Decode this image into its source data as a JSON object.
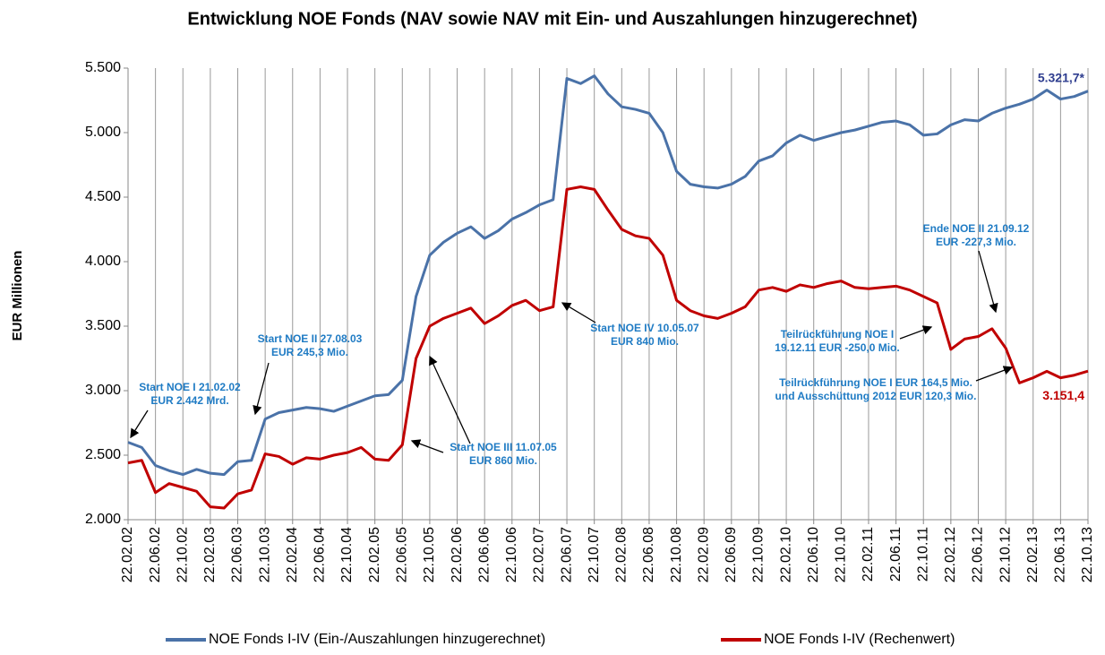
{
  "chart_data": {
    "type": "line",
    "title": "Entwicklung NOE Fonds (NAV sowie NAV mit Ein- und Auszahlungen hinzugerechnet)",
    "y_label": "EUR Millionen",
    "categories": [
      "22.02.02",
      null,
      "22.06.02",
      null,
      "22.10.02",
      null,
      "22.02.03",
      null,
      "22.06.03",
      null,
      "22.10.03",
      null,
      "22.02.04",
      null,
      "22.06.04",
      null,
      "22.10.04",
      null,
      "22.02.05",
      null,
      "22.06.05",
      null,
      "22.10.05",
      null,
      "22.02.06",
      null,
      "22.06.06",
      null,
      "22.10.06",
      null,
      "22.02.07",
      null,
      "22.06.07",
      null,
      "22.10.07",
      null,
      "22.02.08",
      null,
      "22.06.08",
      null,
      "22.10.08",
      null,
      "22.02.09",
      null,
      "22.06.09",
      null,
      "22.10.09",
      null,
      "22.02.10",
      null,
      "22.06.10",
      null,
      "22.10.10",
      null,
      "22.02.11",
      null,
      "22.06.11",
      null,
      "22.10.11",
      null,
      "22.02.12",
      null,
      "22.06.12",
      null,
      "22.10.12",
      null,
      "22.02.13",
      null,
      "22.06.13",
      null,
      "22.10.13"
    ],
    "series": [
      {
        "name": "NOE Fonds I-IV (Ein-/Auszahlungen hinzugerechnet)",
        "color": "#4a72a8",
        "label_color": "#2e3d8f",
        "values": [
          2600,
          2560,
          2420,
          2380,
          2350,
          2390,
          2360,
          2350,
          2450,
          2460,
          2780,
          2830,
          2850,
          2870,
          2860,
          2840,
          2880,
          2920,
          2960,
          2970,
          3080,
          3730,
          4050,
          4150,
          4220,
          4270,
          4180,
          4240,
          4330,
          4380,
          4440,
          4480,
          5420,
          5380,
          5440,
          5300,
          5200,
          5180,
          5150,
          5000,
          4700,
          4600,
          4580,
          4570,
          4600,
          4660,
          4780,
          4820,
          4920,
          4980,
          4940,
          4970,
          5000,
          5020,
          5050,
          5080,
          5090,
          5060,
          4980,
          4990,
          5060,
          5100,
          5090,
          5150,
          5190,
          5220,
          5260,
          5330,
          5260,
          5280,
          5321.7
        ],
        "value_labels": [
          null,
          null,
          null,
          null,
          null,
          null,
          null,
          null,
          null,
          null,
          null,
          null,
          null,
          null,
          null,
          null,
          null,
          null,
          null,
          null,
          null,
          null,
          null,
          null,
          null,
          null,
          null,
          null,
          null,
          null,
          null,
          null,
          null,
          null,
          null,
          null,
          null,
          null,
          null,
          null,
          null,
          null,
          null,
          null,
          null,
          null,
          null,
          null,
          null,
          null,
          null,
          null,
          null,
          null,
          null,
          null,
          null,
          null,
          null,
          null,
          null,
          null,
          null,
          null,
          null,
          null,
          null,
          null,
          null,
          null,
          "5.321,7*"
        ]
      },
      {
        "name": "NOE Fonds I-IV (Rechenwert)",
        "color": "#c00000",
        "label_color": "#c00000",
        "values": [
          2440,
          2460,
          2210,
          2280,
          2250,
          2220,
          2100,
          2090,
          2200,
          2230,
          2510,
          2490,
          2430,
          2480,
          2470,
          2500,
          2520,
          2560,
          2470,
          2460,
          2580,
          3250,
          3500,
          3560,
          3600,
          3640,
          3520,
          3580,
          3660,
          3700,
          3620,
          3650,
          4560,
          4580,
          4560,
          4400,
          4250,
          4200,
          4180,
          4050,
          3700,
          3620,
          3580,
          3560,
          3600,
          3650,
          3780,
          3800,
          3770,
          3820,
          3800,
          3830,
          3850,
          3800,
          3790,
          3800,
          3810,
          3780,
          3730,
          3680,
          3320,
          3400,
          3420,
          3480,
          3330,
          3060,
          3100,
          3150,
          3100,
          3120,
          3151.4
        ],
        "value_labels": [
          null,
          null,
          null,
          null,
          null,
          null,
          null,
          null,
          null,
          null,
          null,
          null,
          null,
          null,
          null,
          null,
          null,
          null,
          null,
          null,
          null,
          null,
          null,
          null,
          null,
          null,
          null,
          null,
          null,
          null,
          null,
          null,
          null,
          null,
          null,
          null,
          null,
          null,
          null,
          null,
          null,
          null,
          null,
          null,
          null,
          null,
          null,
          null,
          null,
          null,
          null,
          null,
          null,
          null,
          null,
          null,
          null,
          null,
          null,
          null,
          null,
          null,
          null,
          null,
          null,
          null,
          null,
          null,
          null,
          null,
          "3.151,4"
        ]
      }
    ],
    "ylim": [
      2000,
      5500
    ],
    "yticks": [
      {
        "value": 2000,
        "label": "2.000"
      },
      {
        "value": 2500,
        "label": "2.500"
      },
      {
        "value": 3000,
        "label": "3.000"
      },
      {
        "value": 3500,
        "label": "3.500"
      },
      {
        "value": 4000,
        "label": "4.000"
      },
      {
        "value": 4500,
        "label": "4.500"
      },
      {
        "value": 5000,
        "label": "5.000"
      },
      {
        "value": 5500,
        "label": "5.500"
      }
    ],
    "grid": "x",
    "legend": "bottom",
    "annotation_color": "#1f7bc4",
    "annotations": [
      [
        "Start NOE I 21.02.02",
        "EUR 2.442 Mrd."
      ],
      [
        "Start NOE II 27.08.03",
        "EUR 245,3 Mio."
      ],
      [
        "Start NOE III 11.07.05",
        "EUR 860 Mio."
      ],
      [
        "Start NOE IV 10.05.07",
        "EUR 840 Mio."
      ],
      [
        "Teilrückführung NOE I",
        "19.12.11 EUR -250,0 Mio."
      ],
      [
        "Ende NOE II 21.09.12",
        "EUR -227,3 Mio."
      ],
      [
        "Teilrückführung NOE I EUR 164,5 Mio.",
        "und Ausschüttung 2012 EUR 120,3 Mio."
      ]
    ]
  }
}
